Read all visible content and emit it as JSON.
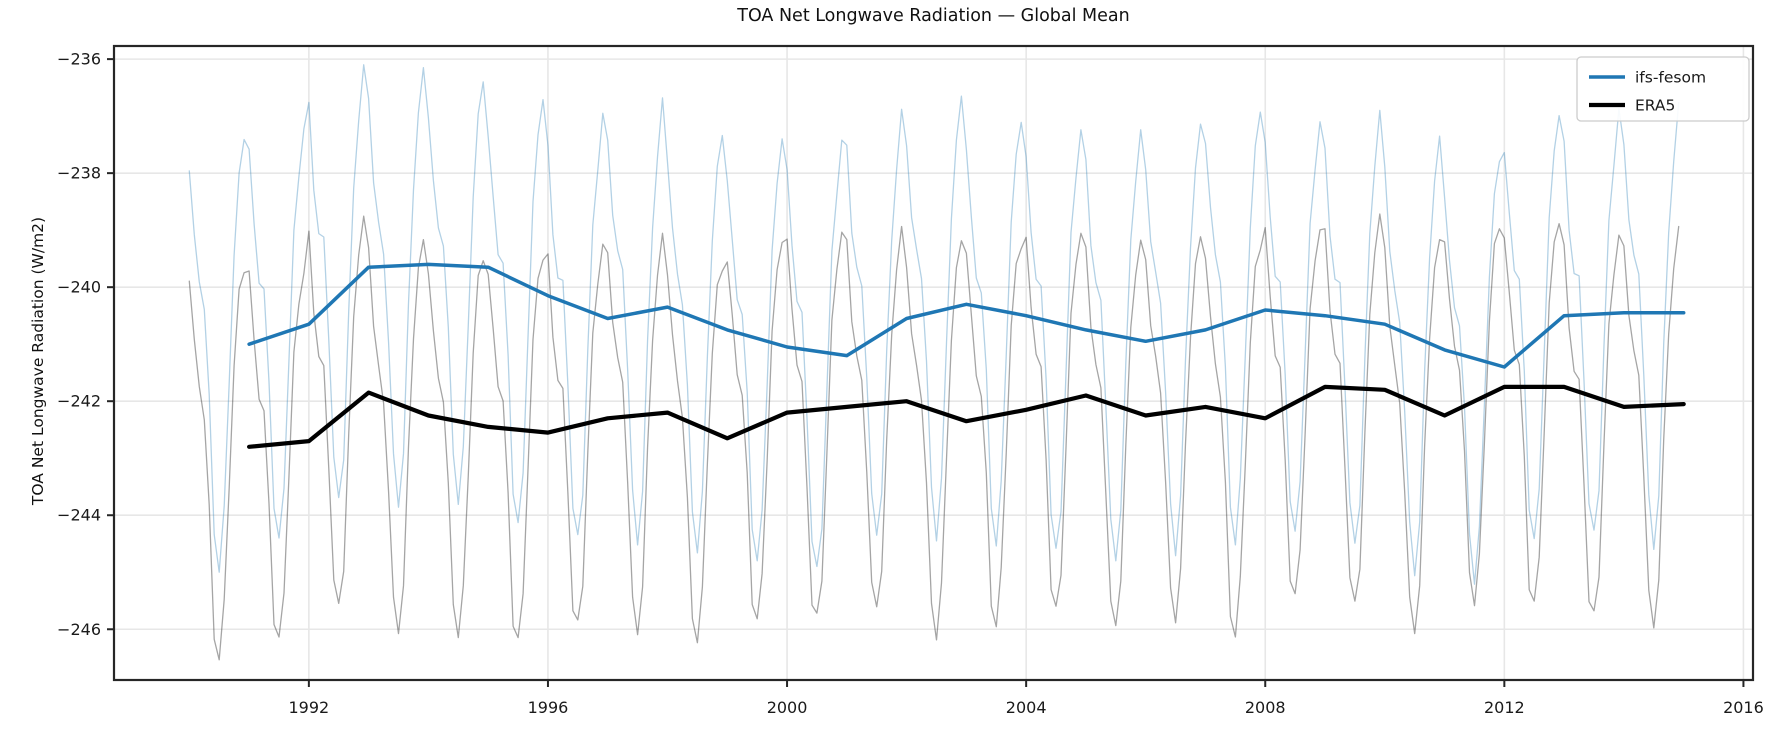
{
  "title": "TOA Net Longwave Radiation — Global Mean",
  "chart_data": {
    "type": "line",
    "title": "TOA Net Longwave Radiation — Global Mean",
    "xlabel": "",
    "ylabel": "TOA Net Longwave Radiation (W/m2)",
    "xlim": [
      1988.74,
      2016.16
    ],
    "ylim": [
      -246.89,
      -235.77
    ],
    "grid": true,
    "legend_position": "upper right",
    "xticks": {
      "values": [
        1992,
        1996,
        2000,
        2004,
        2008,
        2012,
        2016
      ],
      "labels": [
        "1992",
        "1996",
        "2000",
        "2004",
        "2008",
        "2012",
        "2016"
      ]
    },
    "yticks": {
      "values": [
        -236,
        -238,
        -240,
        -242,
        -244,
        -246
      ],
      "labels": [
        "−236",
        "−238",
        "−240",
        "−242",
        "−244",
        "−246"
      ]
    },
    "series": [
      {
        "name": "ifs-fesom monthly",
        "role": "monthly-background",
        "color": "rgba(31,119,180,0.34)",
        "linewidth": 1.3,
        "start_year": 1990,
        "n_months": 300,
        "climatology": [
          -237.6,
          -238.9,
          -239.7,
          -240.0,
          -241.6,
          -243.8,
          -244.5,
          -243.6,
          -241.2,
          -239.0,
          -237.8,
          -237.0
        ],
        "year_offsets": [
          -0.45,
          -0.1,
          0.9,
          0.95,
          0.9,
          0.4,
          0.0,
          0.2,
          -0.2,
          -0.5,
          -0.65,
          0.0,
          0.25,
          0.05,
          -0.2,
          -0.4,
          -0.2,
          0.15,
          0.05,
          -0.1,
          -0.55,
          -0.85,
          0.05,
          0.1,
          0.1
        ],
        "offset_scale": 0.8
      },
      {
        "name": "ERA5 monthly",
        "role": "monthly-background",
        "color": "rgba(40,40,40,0.42)",
        "linewidth": 1.3,
        "start_year": 1990,
        "n_months": 300,
        "climatology": [
          -239.4,
          -240.6,
          -241.4,
          -241.8,
          -243.4,
          -245.5,
          -245.9,
          -245.1,
          -242.9,
          -240.8,
          -239.7,
          -239.2
        ],
        "year_offsets": [
          -0.62,
          -0.52,
          0.33,
          -0.07,
          -0.27,
          -0.37,
          -0.12,
          -0.02,
          -0.42,
          -0.02,
          0.08,
          0.18,
          -0.17,
          0.03,
          0.28,
          -0.07,
          0.08,
          -0.12,
          0.43,
          0.38,
          -0.07,
          0.43,
          0.43,
          0.08,
          0.13
        ],
        "offset_scale": 0.8
      },
      {
        "name": "ifs-fesom",
        "role": "annual-mean",
        "color": "#1f77b4",
        "linewidth": 3.5,
        "x": [
          1991,
          1992,
          1993,
          1994,
          1995,
          1996,
          1997,
          1998,
          1999,
          2000,
          2001,
          2002,
          2003,
          2004,
          2005,
          2006,
          2007,
          2008,
          2009,
          2010,
          2011,
          2012,
          2013,
          2014,
          2015
        ],
        "values": [
          -241.0,
          -240.65,
          -239.65,
          -239.6,
          -239.65,
          -240.15,
          -240.55,
          -240.35,
          -240.75,
          -241.05,
          -241.2,
          -240.55,
          -240.3,
          -240.5,
          -240.75,
          -240.95,
          -240.75,
          -240.4,
          -240.5,
          -240.65,
          -241.1,
          -241.4,
          -240.5,
          -240.45,
          -240.45
        ]
      },
      {
        "name": "ERA5",
        "role": "annual-mean",
        "color": "#000000",
        "linewidth": 4.2,
        "x": [
          1991,
          1992,
          1993,
          1994,
          1995,
          1996,
          1997,
          1998,
          1999,
          2000,
          2001,
          2002,
          2003,
          2004,
          2005,
          2006,
          2007,
          2008,
          2009,
          2010,
          2011,
          2012,
          2013,
          2014,
          2015
        ],
        "values": [
          -242.8,
          -242.7,
          -241.85,
          -242.25,
          -242.45,
          -242.55,
          -242.3,
          -242.2,
          -242.65,
          -242.2,
          -242.1,
          -242.0,
          -242.35,
          -242.15,
          -241.9,
          -242.25,
          -242.1,
          -242.3,
          -241.75,
          -241.8,
          -242.25,
          -241.75,
          -241.75,
          -242.1,
          -242.05
        ]
      }
    ],
    "jitter": [
      0.0,
      0.12,
      -0.15,
      0.08,
      -0.05,
      0.18,
      -0.12,
      0.05,
      -0.18,
      0.1,
      0.15,
      -0.08,
      0.02,
      -0.14,
      0.09,
      -0.03,
      0.16
    ],
    "legend": {
      "entries": [
        {
          "label": "ifs-fesom",
          "color": "#1f77b4",
          "linewidth": 3.5
        },
        {
          "label": "ERA5",
          "color": "#000000",
          "linewidth": 4.2
        }
      ]
    },
    "style": {
      "grid_color": "#e7e7e7",
      "spine_color": "#262626",
      "text_color": "#1a1a1a",
      "legend_border": "#cccccc",
      "background": "#ffffff"
    }
  }
}
